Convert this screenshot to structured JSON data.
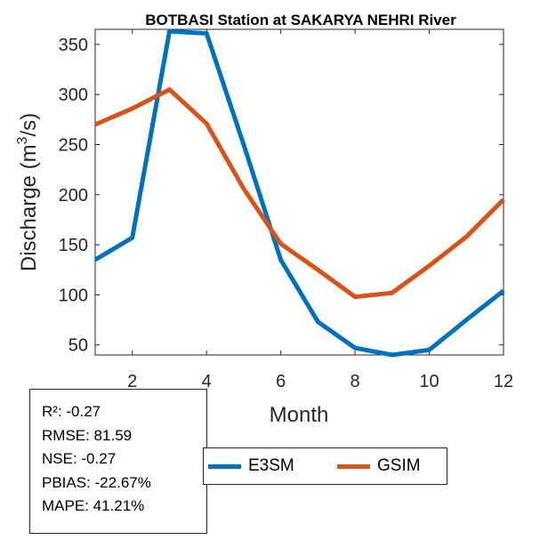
{
  "chart_data": {
    "type": "line",
    "title": "BOTBASI  Station at  SAKARYA NEHRI  River",
    "xlabel": "Month",
    "ylabel": "Discharge (m³/s)",
    "ylabel_parts": {
      "before": "Discharge (m",
      "sup": "3",
      "after": "/s)"
    },
    "xlim": [
      1,
      12
    ],
    "ylim": [
      40,
      365
    ],
    "xticks": [
      2,
      4,
      6,
      8,
      10,
      12
    ],
    "yticks": [
      50,
      100,
      150,
      200,
      250,
      300,
      350
    ],
    "x": [
      1,
      2,
      3,
      4,
      5,
      6,
      7,
      8,
      9,
      10,
      11,
      12
    ],
    "series": [
      {
        "name": "E3SM",
        "color": "#0072BD",
        "values": [
          135,
          157,
          363,
          361,
          250,
          135,
          73,
          47,
          40,
          45,
          75,
          104
        ]
      },
      {
        "name": "GSIM",
        "color": "#D95319",
        "values": [
          270,
          286,
          305,
          271,
          206,
          151,
          125,
          98,
          102,
          129,
          158,
          195
        ]
      }
    ]
  },
  "stats": [
    "R²: -0.27",
    "RMSE: 81.59",
    "NSE: -0.27",
    "PBIAS: -22.67%",
    "MAPE: 41.21%"
  ],
  "legend": {
    "items": [
      {
        "label": "E3SM",
        "color": "#0072BD"
      },
      {
        "label": "GSIM",
        "color": "#D95319"
      }
    ]
  }
}
